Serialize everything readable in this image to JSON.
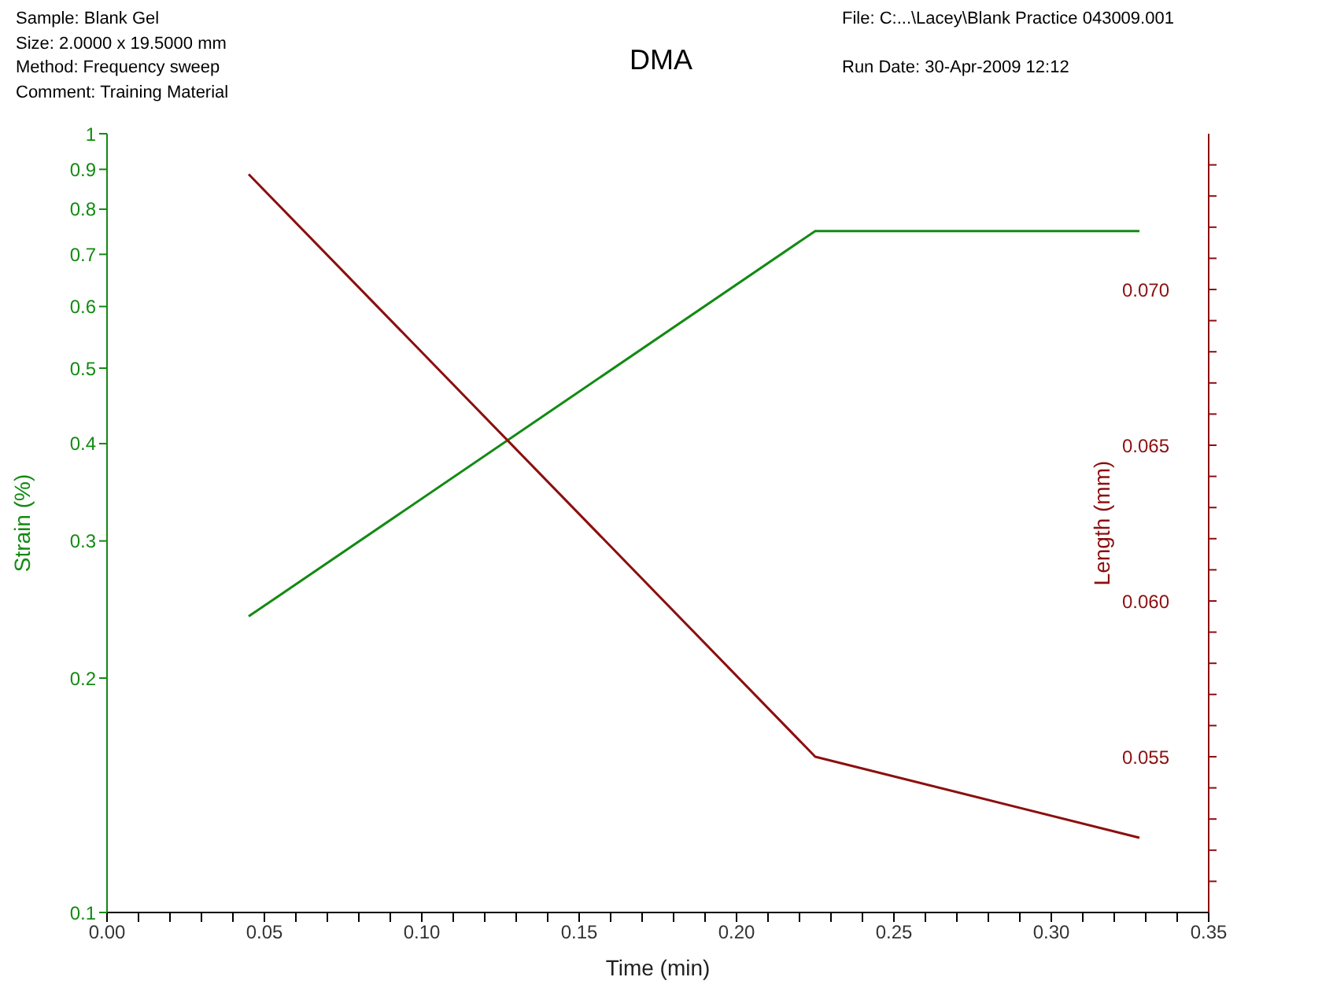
{
  "chart_data": {
    "type": "line",
    "title": "DMA",
    "annotations": [
      "Sample: Blank Gel",
      "Size:  2.0000 x 19.5000 mm",
      "Method: Frequency sweep",
      "Comment: Training Material",
      "File: C:...\\Lacey\\Blank Practice 043009.001",
      "Run Date: 30-Apr-2009 12:12"
    ],
    "xlabel": "Time (min)",
    "ylabel": "Strain (%)",
    "y2label": "Length (mm)",
    "x": [
      0.045,
      0.225,
      0.328
    ],
    "series": [
      {
        "color": "#138a13",
        "values": [
          0.24,
          0.75,
          0.75
        ]
      },
      {
        "color": "#8b0f0f",
        "axis": "y2",
        "values": [
          0.0737,
          0.055,
          0.0524
        ]
      }
    ],
    "xlim": [
      0,
      0.35
    ],
    "xticks": [
      {
        "value": 0,
        "label": "0.00"
      },
      {
        "value": 0.01,
        "label": null
      },
      {
        "value": 0.02,
        "label": null
      },
      {
        "value": 0.03,
        "label": null
      },
      {
        "value": 0.04,
        "label": null
      },
      {
        "value": 0.05,
        "label": "0.05"
      },
      {
        "value": 0.06,
        "label": null
      },
      {
        "value": 0.07,
        "label": null
      },
      {
        "value": 0.08,
        "label": null
      },
      {
        "value": 0.09,
        "label": null
      },
      {
        "value": 0.1,
        "label": "0.10"
      },
      {
        "value": 0.11,
        "label": null
      },
      {
        "value": 0.12,
        "label": null
      },
      {
        "value": 0.13,
        "label": null
      },
      {
        "value": 0.14,
        "label": null
      },
      {
        "value": 0.15,
        "label": "0.15"
      },
      {
        "value": 0.16,
        "label": null
      },
      {
        "value": 0.17,
        "label": null
      },
      {
        "value": 0.18,
        "label": null
      },
      {
        "value": 0.19,
        "label": null
      },
      {
        "value": 0.2,
        "label": "0.20"
      },
      {
        "value": 0.21,
        "label": null
      },
      {
        "value": 0.22,
        "label": null
      },
      {
        "value": 0.23,
        "label": null
      },
      {
        "value": 0.24,
        "label": null
      },
      {
        "value": 0.25,
        "label": "0.25"
      },
      {
        "value": 0.26,
        "label": null
      },
      {
        "value": 0.27,
        "label": null
      },
      {
        "value": 0.28,
        "label": null
      },
      {
        "value": 0.29,
        "label": null
      },
      {
        "value": 0.3,
        "label": "0.30"
      },
      {
        "value": 0.31,
        "label": null
      },
      {
        "value": 0.32,
        "label": null
      },
      {
        "value": 0.33,
        "label": null
      },
      {
        "value": 0.34,
        "label": null
      },
      {
        "value": 0.35,
        "label": "0.35"
      }
    ],
    "log": "y",
    "ylim": [
      0.1,
      1
    ],
    "yticks": [
      0.1,
      0.2,
      0.3,
      0.4,
      0.5,
      0.6,
      0.7,
      0.8,
      0.9,
      1
    ],
    "y2lim": [
      0.05,
      0.075
    ],
    "y2ticks": [
      {
        "value": 0.051,
        "label": null
      },
      {
        "value": 0.052,
        "label": null
      },
      {
        "value": 0.053,
        "label": null
      },
      {
        "value": 0.054,
        "label": null
      },
      {
        "value": 0.055,
        "label": "0.055"
      },
      {
        "value": 0.056,
        "label": null
      },
      {
        "value": 0.057,
        "label": null
      },
      {
        "value": 0.058,
        "label": null
      },
      {
        "value": 0.059,
        "label": null
      },
      {
        "value": 0.06,
        "label": "0.060"
      },
      {
        "value": 0.061,
        "label": null
      },
      {
        "value": 0.062,
        "label": null
      },
      {
        "value": 0.063,
        "label": null
      },
      {
        "value": 0.064,
        "label": null
      },
      {
        "value": 0.065,
        "label": "0.065"
      },
      {
        "value": 0.066,
        "label": null
      },
      {
        "value": 0.067,
        "label": null
      },
      {
        "value": 0.068,
        "label": null
      },
      {
        "value": 0.069,
        "label": null
      },
      {
        "value": 0.07,
        "label": "0.070"
      },
      {
        "value": 0.071,
        "label": null
      },
      {
        "value": 0.072,
        "label": null
      },
      {
        "value": 0.073,
        "label": null
      },
      {
        "value": 0.074,
        "label": null
      }
    ],
    "grid": false,
    "marker": "none",
    "line_style": "solid"
  }
}
